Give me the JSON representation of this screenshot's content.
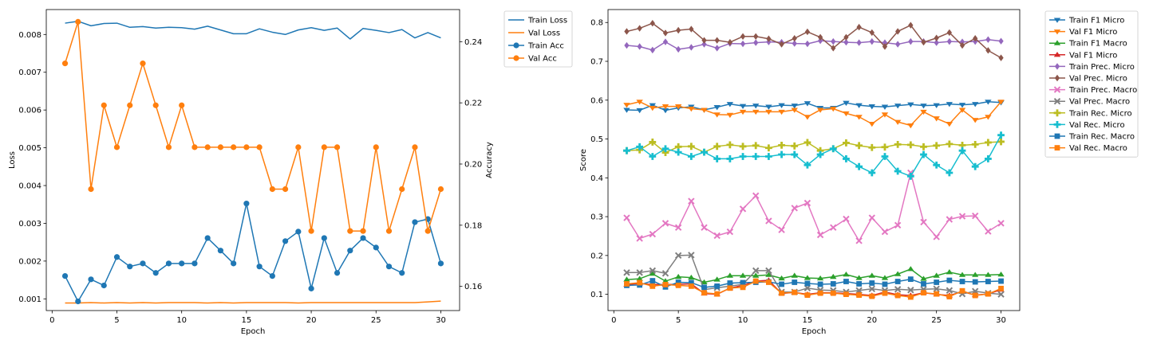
{
  "chart_data": [
    {
      "type": "line",
      "title": "",
      "xlabel": "Epoch",
      "ylabel": "Loss",
      "y2label": "Accuracy",
      "xlim": [
        -0.45,
        31.45
      ],
      "ylim": [
        0.00069,
        0.00866
      ],
      "y2lim": [
        0.1521,
        0.2505
      ],
      "xticks": [
        0,
        5,
        10,
        15,
        20,
        25,
        30
      ],
      "yticks": [
        0.001,
        0.002,
        0.003,
        0.004,
        0.005,
        0.006,
        0.007,
        0.008
      ],
      "ytick_labels": [
        "0.001",
        "0.002",
        "0.003",
        "0.004",
        "0.005",
        "0.006",
        "0.007",
        "0.008"
      ],
      "y2ticks": [
        0.16,
        0.18,
        0.2,
        0.22,
        0.24
      ],
      "y2tick_labels": [
        "0.16",
        "0.18",
        "0.20",
        "0.22",
        "0.24"
      ],
      "grid": false,
      "legend_position": "outside-upper-right",
      "x": [
        1,
        2,
        3,
        4,
        5,
        6,
        7,
        8,
        9,
        10,
        11,
        12,
        13,
        14,
        15,
        16,
        17,
        18,
        19,
        20,
        21,
        22,
        23,
        24,
        25,
        26,
        27,
        28,
        29,
        30
      ],
      "series": [
        {
          "name": "Train Loss",
          "axis": "left",
          "color": "#1f77b4",
          "marker": "none",
          "values": [
            0.0083,
            0.00835,
            0.00823,
            0.00829,
            0.0083,
            0.00819,
            0.00821,
            0.00817,
            0.00819,
            0.00818,
            0.00814,
            0.00822,
            0.00812,
            0.00802,
            0.00802,
            0.00815,
            0.00806,
            0.008,
            0.00812,
            0.00818,
            0.00811,
            0.00817,
            0.00788,
            0.00816,
            0.00811,
            0.00805,
            0.00813,
            0.00791,
            0.00805,
            0.00791
          ]
        },
        {
          "name": "Val Loss",
          "axis": "left",
          "color": "#ff7f0e",
          "marker": "none",
          "values": [
            0.00089,
            0.00089,
            0.0009,
            0.00089,
            0.0009,
            0.00089,
            0.0009,
            0.00089,
            0.0009,
            0.0009,
            0.0009,
            0.00089,
            0.0009,
            0.00089,
            0.0009,
            0.0009,
            0.0009,
            0.0009,
            0.00089,
            0.0009,
            0.0009,
            0.0009,
            0.0009,
            0.0009,
            0.0009,
            0.0009,
            0.0009,
            0.0009,
            0.00092,
            0.00094
          ]
        },
        {
          "name": "Train Acc",
          "axis": "right",
          "color": "#1f77b4",
          "marker": "circle",
          "values": [
            0.1634,
            0.1551,
            0.1623,
            0.1603,
            0.1696,
            0.1665,
            0.1675,
            0.1644,
            0.1675,
            0.1675,
            0.1675,
            0.1758,
            0.1717,
            0.1675,
            0.1871,
            0.1665,
            0.1634,
            0.1748,
            0.1779,
            0.1593,
            0.1758,
            0.1644,
            0.1717,
            0.1758,
            0.1727,
            0.1665,
            0.1644,
            0.181,
            0.182,
            0.1675
          ]
        },
        {
          "name": "Val Acc",
          "axis": "right",
          "color": "#ff7f0e",
          "marker": "circle",
          "values": [
            0.2329,
            0.2465,
            0.1918,
            0.2192,
            0.2055,
            0.2192,
            0.2329,
            0.2192,
            0.2055,
            0.2192,
            0.2055,
            0.2055,
            0.2055,
            0.2055,
            0.2055,
            0.2055,
            0.1918,
            0.1918,
            0.2055,
            0.1781,
            0.2055,
            0.2055,
            0.1781,
            0.1781,
            0.2055,
            0.1781,
            0.1918,
            0.2055,
            0.1781,
            0.1918
          ]
        }
      ]
    },
    {
      "type": "line",
      "title": "",
      "xlabel": "Epoch",
      "ylabel": "Score",
      "xlim": [
        -0.45,
        31.45
      ],
      "ylim": [
        0.0582,
        0.8333
      ],
      "xticks": [
        0,
        5,
        10,
        15,
        20,
        25,
        30
      ],
      "yticks": [
        0.1,
        0.2,
        0.3,
        0.4,
        0.5,
        0.6,
        0.7,
        0.8
      ],
      "ytick_labels": [
        "0.1",
        "0.2",
        "0.3",
        "0.4",
        "0.5",
        "0.6",
        "0.7",
        "0.8"
      ],
      "grid": false,
      "legend_position": "outside-upper-right",
      "x": [
        1,
        2,
        3,
        4,
        5,
        6,
        7,
        8,
        9,
        10,
        11,
        12,
        13,
        14,
        15,
        16,
        17,
        18,
        19,
        20,
        21,
        22,
        23,
        24,
        25,
        26,
        27,
        28,
        29,
        30
      ],
      "series": [
        {
          "name": "Train F1 Micro",
          "color": "#1f77b4",
          "marker": "tri_down",
          "values": [
            0.575,
            0.574,
            0.587,
            0.574,
            0.58,
            0.583,
            0.575,
            0.582,
            0.59,
            0.585,
            0.586,
            0.583,
            0.587,
            0.586,
            0.592,
            0.58,
            0.58,
            0.593,
            0.587,
            0.584,
            0.583,
            0.586,
            0.589,
            0.586,
            0.587,
            0.59,
            0.588,
            0.59,
            0.596,
            0.594
          ]
        },
        {
          "name": "Val F1 Micro",
          "color": "#ff7f0e",
          "marker": "tri_down",
          "values": [
            0.588,
            0.596,
            0.58,
            0.584,
            0.584,
            0.578,
            0.575,
            0.563,
            0.562,
            0.57,
            0.57,
            0.57,
            0.57,
            0.575,
            0.557,
            0.575,
            0.578,
            0.566,
            0.557,
            0.539,
            0.563,
            0.544,
            0.535,
            0.57,
            0.553,
            0.539,
            0.575,
            0.549,
            0.557,
            0.596
          ]
        },
        {
          "name": "Train F1 Macro",
          "color": "#2ca02c",
          "marker": "tri_up",
          "values": [
            0.138,
            0.14,
            0.153,
            0.134,
            0.145,
            0.143,
            0.131,
            0.138,
            0.148,
            0.148,
            0.148,
            0.15,
            0.141,
            0.148,
            0.142,
            0.141,
            0.145,
            0.151,
            0.142,
            0.148,
            0.142,
            0.152,
            0.165,
            0.14,
            0.148,
            0.157,
            0.15,
            0.15,
            0.15,
            0.151
          ]
        },
        {
          "name": "Val F1 Micro",
          "color": "#d62728",
          "marker": "tri_up",
          "values": [
            0.125,
            0.128,
            0.125,
            0.125,
            0.126,
            0.127,
            0.102,
            0.1,
            0.116,
            0.123,
            0.134,
            0.136,
            0.102,
            0.105,
            0.1,
            0.104,
            0.104,
            0.102,
            0.1,
            0.097,
            0.106,
            0.099,
            0.097,
            0.104,
            0.1,
            0.097,
            0.107,
            0.098,
            0.101,
            0.112
          ]
        },
        {
          "name": "Train Prec. Micro",
          "color": "#9467bd",
          "marker": "diamond",
          "values": [
            0.741,
            0.738,
            0.729,
            0.75,
            0.731,
            0.736,
            0.744,
            0.734,
            0.746,
            0.745,
            0.748,
            0.75,
            0.749,
            0.746,
            0.745,
            0.753,
            0.751,
            0.749,
            0.748,
            0.751,
            0.748,
            0.744,
            0.751,
            0.751,
            0.748,
            0.751,
            0.75,
            0.751,
            0.756,
            0.752
          ]
        },
        {
          "name": "Val Prec. Micro",
          "color": "#8c564b",
          "marker": "diamond",
          "values": [
            0.777,
            0.785,
            0.798,
            0.773,
            0.78,
            0.783,
            0.754,
            0.754,
            0.749,
            0.764,
            0.764,
            0.758,
            0.744,
            0.759,
            0.776,
            0.762,
            0.734,
            0.762,
            0.788,
            0.774,
            0.738,
            0.777,
            0.793,
            0.749,
            0.76,
            0.774,
            0.741,
            0.759,
            0.728,
            0.709
          ]
        },
        {
          "name": "Train Prec. Macro",
          "color": "#e377c2",
          "marker": "x",
          "values": [
            0.297,
            0.244,
            0.255,
            0.283,
            0.272,
            0.34,
            0.272,
            0.251,
            0.261,
            0.32,
            0.354,
            0.289,
            0.266,
            0.322,
            0.335,
            0.253,
            0.272,
            0.294,
            0.238,
            0.297,
            0.261,
            0.278,
            0.413,
            0.286,
            0.248,
            0.293,
            0.301,
            0.302,
            0.262,
            0.283
          ]
        },
        {
          "name": "Val Prec. Macro",
          "color": "#7f7f7f",
          "marker": "x",
          "values": [
            0.156,
            0.156,
            0.161,
            0.154,
            0.2,
            0.201,
            0.112,
            0.117,
            0.121,
            0.126,
            0.161,
            0.161,
            0.106,
            0.106,
            0.116,
            0.111,
            0.11,
            0.106,
            0.11,
            0.114,
            0.11,
            0.113,
            0.111,
            0.113,
            0.114,
            0.11,
            0.101,
            0.108,
            0.103,
            0.1
          ]
        },
        {
          "name": "Train Rec. Micro",
          "color": "#bcbd22",
          "marker": "plus",
          "values": [
            0.47,
            0.472,
            0.492,
            0.465,
            0.48,
            0.481,
            0.466,
            0.481,
            0.485,
            0.481,
            0.483,
            0.477,
            0.484,
            0.482,
            0.491,
            0.47,
            0.475,
            0.49,
            0.483,
            0.478,
            0.479,
            0.486,
            0.485,
            0.48,
            0.483,
            0.487,
            0.484,
            0.486,
            0.491,
            0.493
          ]
        },
        {
          "name": "Val Rec. Micro",
          "color": "#17becf",
          "marker": "plus",
          "values": [
            0.47,
            0.48,
            0.455,
            0.475,
            0.466,
            0.455,
            0.466,
            0.449,
            0.449,
            0.455,
            0.455,
            0.455,
            0.46,
            0.46,
            0.433,
            0.46,
            0.475,
            0.449,
            0.429,
            0.413,
            0.455,
            0.417,
            0.404,
            0.46,
            0.433,
            0.413,
            0.47,
            0.429,
            0.449,
            0.51
          ]
        },
        {
          "name": "Train Rec. Macro",
          "color": "#1f77b4",
          "marker": "square",
          "values": [
            0.123,
            0.124,
            0.135,
            0.119,
            0.131,
            0.13,
            0.118,
            0.121,
            0.129,
            0.13,
            0.131,
            0.132,
            0.126,
            0.131,
            0.128,
            0.126,
            0.127,
            0.133,
            0.127,
            0.129,
            0.126,
            0.133,
            0.139,
            0.127,
            0.131,
            0.136,
            0.133,
            0.132,
            0.133,
            0.134
          ]
        },
        {
          "name": "Val Rec. Macro",
          "color": "#ff7f0e",
          "marker": "square",
          "values": [
            0.127,
            0.13,
            0.121,
            0.125,
            0.123,
            0.121,
            0.104,
            0.101,
            0.116,
            0.118,
            0.134,
            0.131,
            0.103,
            0.105,
            0.098,
            0.103,
            0.103,
            0.1,
            0.098,
            0.095,
            0.103,
            0.097,
            0.093,
            0.104,
            0.101,
            0.094,
            0.109,
            0.097,
            0.101,
            0.115
          ]
        }
      ]
    }
  ]
}
